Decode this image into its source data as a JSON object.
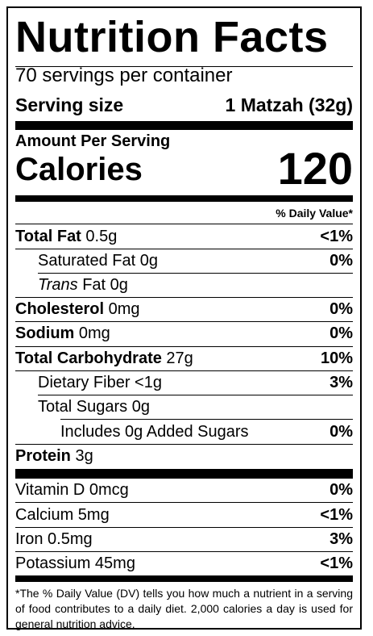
{
  "title": "Nutrition Facts",
  "servings_per_container": "70 servings per container",
  "serving_size": {
    "label": "Serving size",
    "value": "1 Matzah (32g)"
  },
  "amount_per_serving": "Amount Per Serving",
  "calories": {
    "label": "Calories",
    "value": "120"
  },
  "daily_value_header": "% Daily Value*",
  "nutrients": {
    "total_fat": {
      "name": "Total Fat",
      "amount": " 0.5g",
      "dv": "<1%"
    },
    "saturated_fat": {
      "name": "Saturated Fat 0g",
      "dv": "0%"
    },
    "trans_fat": {
      "name_italic": "Trans",
      "name_rest": " Fat 0g"
    },
    "cholesterol": {
      "name": "Cholesterol",
      "amount": " 0mg",
      "dv": "0%"
    },
    "sodium": {
      "name": "Sodium",
      "amount": " 0mg",
      "dv": "0%"
    },
    "total_carbohydrate": {
      "name": "Total Carbohydrate",
      "amount": " 27g",
      "dv": "10%"
    },
    "dietary_fiber": {
      "name": "Dietary Fiber <1g",
      "dv": "3%"
    },
    "total_sugars": {
      "name": "Total Sugars 0g"
    },
    "added_sugars": {
      "name": "Includes 0g Added Sugars",
      "dv": "0%"
    },
    "protein": {
      "name": "Protein",
      "amount": " 3g"
    }
  },
  "vitamins": {
    "vitamin_d": {
      "name": "Vitamin D 0mcg",
      "dv": "0%"
    },
    "calcium": {
      "name": "Calcium 5mg",
      "dv": "<1%"
    },
    "iron": {
      "name": "Iron 0.5mg",
      "dv": "3%"
    },
    "potassium": {
      "name": "Potassium 45mg",
      "dv": "<1%"
    }
  },
  "footnote": "*The % Daily Value (DV) tells you how much a nutrient in a serving of food contributes to a daily diet. 2,000 calories a day is used for general nutrition advice."
}
